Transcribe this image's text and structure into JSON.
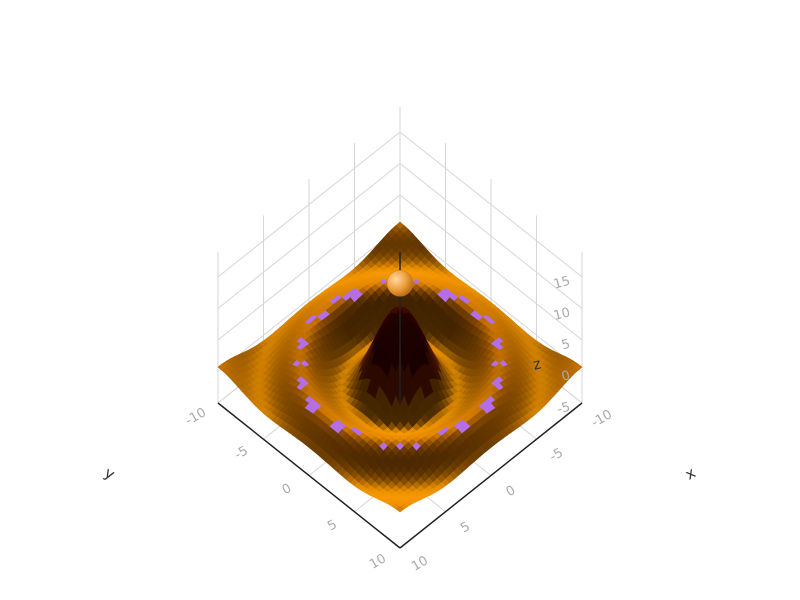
{
  "chart_data": {
    "type": "surface",
    "title": "",
    "function": "z = 10*sin(r)/r, r = sqrt(x^2 + y^2)",
    "colorscale": [
      "#4a0000",
      "#7a1e00",
      "#b35a00",
      "#e08a00"
    ],
    "highlight_color": "#b46ee6",
    "grid": true,
    "x_axis": {
      "title": "x",
      "range": [
        -10,
        10
      ],
      "ticks": [
        "-10",
        "-5",
        "0",
        "5",
        "10"
      ]
    },
    "y_axis": {
      "title": "y",
      "range": [
        -10,
        10
      ],
      "ticks": [
        "-10",
        "-5",
        "0",
        "5",
        "10"
      ]
    },
    "z_axis": {
      "title": "z",
      "range": [
        -5,
        15
      ],
      "ticks": [
        "-5",
        "0",
        "5",
        "10",
        "15"
      ]
    },
    "marker": {
      "shape": "sphere",
      "x": 0,
      "y": 0,
      "z": 14,
      "color": "#f0a040"
    },
    "vertical_line": {
      "x": 0,
      "y": 0,
      "z_range": [
        -5,
        19
      ]
    }
  }
}
